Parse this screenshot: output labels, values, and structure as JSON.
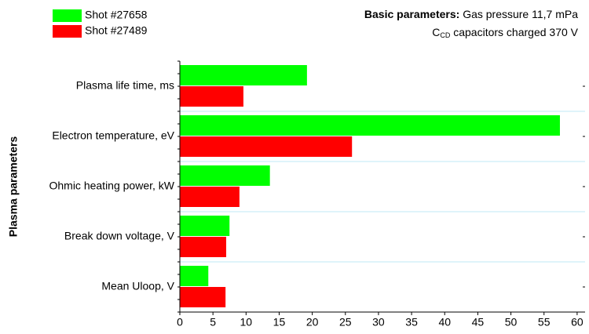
{
  "chart_data": {
    "type": "hbar",
    "y_label": "Plasma parameters",
    "categories": [
      "Plasma life time, ms",
      "Electron temperature, eV",
      "Ohmic heating power, kW",
      "Break down voltage, V",
      "Mean Uloop, V"
    ],
    "series": [
      {
        "name": "Shot #27658",
        "color": "#00ff00",
        "values": [
          19.2,
          57.4,
          13.6,
          7.5,
          4.3
        ]
      },
      {
        "name": "Shot #27489",
        "color": "#ff0000",
        "values": [
          9.6,
          26.0,
          9.0,
          7.0,
          6.9
        ]
      }
    ],
    "xlim": [
      0,
      61.2
    ],
    "xticks": [
      0,
      5,
      10,
      15,
      20,
      25,
      30,
      35,
      40,
      45,
      50,
      55,
      60
    ],
    "grid": true,
    "annotation": {
      "bold": "Basic parameters:",
      "line1": "Gas pressure 11,7 mPa",
      "c": "C",
      "sub": "CD",
      "line2": "capacitors charged 370 V"
    }
  }
}
